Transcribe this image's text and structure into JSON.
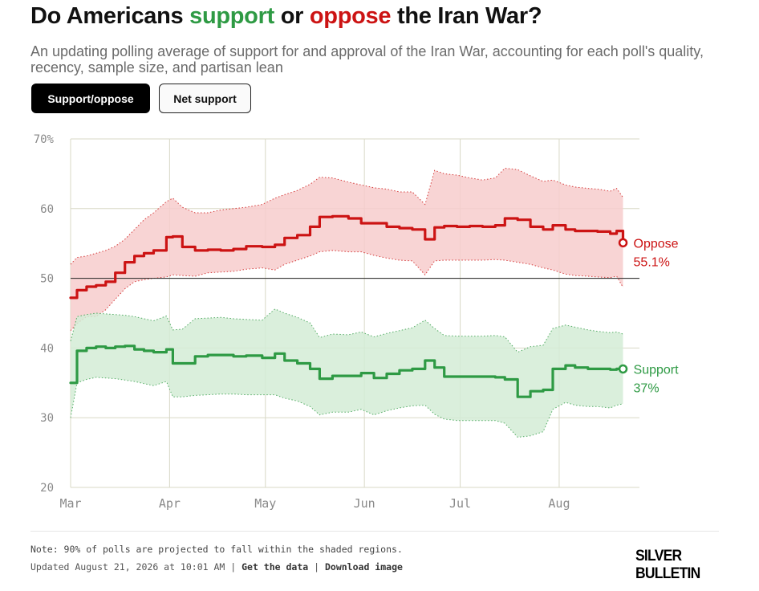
{
  "header": {
    "title_prefix": "Do Americans ",
    "title_support": "support",
    "title_mid": " or ",
    "title_oppose": "oppose",
    "title_suffix": " the Iran War?",
    "subtitle": "An updating polling average of support for and approval of the Iran War, accounting for each poll's quality, recency, sample size, and partisan lean"
  },
  "toggles": {
    "active": "Support/oppose",
    "inactive": "Net support"
  },
  "colors": {
    "support": "#2e9a44",
    "oppose": "#cc1313",
    "support_band": "#d3ecd6",
    "oppose_band": "#f7cccc",
    "grid": "#d8d8c6",
    "axis_text": "#8a8a8a"
  },
  "chart_data": {
    "type": "area",
    "x_unit": "date",
    "x_range": [
      "2026-03-01",
      "2026-08-21"
    ],
    "ylim": [
      20,
      70
    ],
    "y_ticks": [
      20,
      30,
      40,
      50,
      60,
      70
    ],
    "y_tick_labels": [
      "20",
      "30",
      "40",
      "50",
      "60",
      "70%"
    ],
    "x_ticks": [
      {
        "date": "2026-03-01",
        "label": "Mar"
      },
      {
        "date": "2026-04-01",
        "label": "Apr"
      },
      {
        "date": "2026-05-01",
        "label": "May"
      },
      {
        "date": "2026-06-01",
        "label": "Jun"
      },
      {
        "date": "2026-07-01",
        "label": "Jul"
      },
      {
        "date": "2026-08-01",
        "label": "Aug"
      }
    ],
    "reference_line": 50,
    "grid": true,
    "legend_placement": "end-of-line labels",
    "series": [
      {
        "name": "Oppose",
        "end_label": "55.1%",
        "x": [
          "2026-03-01",
          "2026-03-03",
          "2026-03-06",
          "2026-03-09",
          "2026-03-12",
          "2026-03-15",
          "2026-03-18",
          "2026-03-21",
          "2026-03-24",
          "2026-03-27",
          "2026-03-31",
          "2026-04-02",
          "2026-04-05",
          "2026-04-09",
          "2026-04-13",
          "2026-04-17",
          "2026-04-21",
          "2026-04-25",
          "2026-04-30",
          "2026-05-04",
          "2026-05-07",
          "2026-05-11",
          "2026-05-15",
          "2026-05-18",
          "2026-05-22",
          "2026-05-27",
          "2026-05-31",
          "2026-06-04",
          "2026-06-08",
          "2026-06-12",
          "2026-06-16",
          "2026-06-20",
          "2026-06-23",
          "2026-06-26",
          "2026-06-30",
          "2026-07-04",
          "2026-07-08",
          "2026-07-12",
          "2026-07-15",
          "2026-07-19",
          "2026-07-23",
          "2026-07-27",
          "2026-07-30",
          "2026-08-03",
          "2026-08-06",
          "2026-08-10",
          "2026-08-13",
          "2026-08-17",
          "2026-08-19",
          "2026-08-21"
        ],
        "values": [
          47.2,
          48.3,
          48.8,
          49.0,
          49.5,
          50.8,
          52.3,
          53.2,
          53.6,
          54.0,
          55.9,
          56.0,
          54.5,
          54.0,
          54.1,
          54.0,
          54.2,
          54.6,
          54.5,
          54.8,
          55.8,
          56.2,
          57.4,
          58.8,
          58.9,
          58.6,
          57.9,
          57.9,
          57.4,
          57.2,
          57.0,
          55.6,
          57.3,
          57.5,
          57.4,
          57.5,
          57.4,
          57.6,
          58.6,
          58.4,
          57.4,
          57.0,
          57.6,
          57.0,
          56.8,
          56.8,
          56.7,
          56.4,
          56.8,
          55.1
        ],
        "band_low": [
          42.5,
          43.5,
          44.5,
          44.5,
          45.5,
          47.0,
          48.5,
          49.5,
          49.8,
          50.0,
          50.2,
          50.5,
          50.4,
          50.3,
          50.8,
          50.9,
          51.0,
          51.3,
          51.5,
          51.2,
          52.0,
          52.6,
          53.2,
          53.8,
          54.0,
          53.8,
          53.8,
          53.3,
          52.9,
          52.6,
          52.5,
          50.5,
          52.5,
          52.6,
          52.6,
          52.6,
          52.6,
          52.7,
          52.6,
          52.3,
          52.0,
          51.5,
          51.2,
          50.6,
          50.4,
          50.3,
          50.2,
          50.1,
          50.3,
          48.7
        ],
        "band_high": [
          52.0,
          53.0,
          53.2,
          53.6,
          54.0,
          54.6,
          55.6,
          57.0,
          58.4,
          59.4,
          61.0,
          61.5,
          60.2,
          59.4,
          59.4,
          59.8,
          60.0,
          60.2,
          60.6,
          61.5,
          62.0,
          62.6,
          63.5,
          64.5,
          64.4,
          63.8,
          63.4,
          63.0,
          62.8,
          62.4,
          62.4,
          60.6,
          65.5,
          65.0,
          64.8,
          64.4,
          64.1,
          64.4,
          65.8,
          65.6,
          64.7,
          63.9,
          64.1,
          63.4,
          63.1,
          62.9,
          62.8,
          62.5,
          62.9,
          61.6
        ]
      },
      {
        "name": "Support",
        "end_label": "37%",
        "x": [
          "2026-03-01",
          "2026-03-03",
          "2026-03-06",
          "2026-03-09",
          "2026-03-12",
          "2026-03-15",
          "2026-03-18",
          "2026-03-21",
          "2026-03-24",
          "2026-03-27",
          "2026-03-31",
          "2026-04-02",
          "2026-04-05",
          "2026-04-09",
          "2026-04-13",
          "2026-04-17",
          "2026-04-21",
          "2026-04-25",
          "2026-04-30",
          "2026-05-04",
          "2026-05-07",
          "2026-05-11",
          "2026-05-15",
          "2026-05-18",
          "2026-05-22",
          "2026-05-27",
          "2026-05-31",
          "2026-06-04",
          "2026-06-08",
          "2026-06-12",
          "2026-06-16",
          "2026-06-20",
          "2026-06-23",
          "2026-06-26",
          "2026-06-30",
          "2026-07-04",
          "2026-07-08",
          "2026-07-12",
          "2026-07-15",
          "2026-07-19",
          "2026-07-23",
          "2026-07-27",
          "2026-07-30",
          "2026-08-03",
          "2026-08-06",
          "2026-08-10",
          "2026-08-13",
          "2026-08-17",
          "2026-08-19",
          "2026-08-21"
        ],
        "values": [
          35.0,
          39.6,
          40.0,
          40.2,
          40.0,
          40.2,
          40.3,
          39.8,
          39.6,
          39.4,
          39.8,
          37.8,
          37.8,
          38.8,
          39.0,
          39.0,
          38.8,
          38.9,
          38.6,
          39.2,
          38.2,
          37.8,
          37.0,
          35.6,
          36.0,
          36.0,
          36.4,
          35.7,
          36.3,
          36.8,
          37.0,
          38.2,
          37.2,
          35.9,
          35.9,
          35.9,
          35.9,
          35.8,
          35.5,
          33.0,
          33.8,
          34.0,
          37.0,
          37.5,
          37.2,
          37.0,
          37.0,
          36.9,
          37.0,
          37.0
        ],
        "band_low": [
          30.0,
          35.0,
          35.5,
          35.8,
          35.7,
          35.6,
          35.4,
          35.2,
          34.9,
          34.6,
          35.2,
          33.0,
          33.0,
          33.2,
          33.3,
          33.4,
          33.4,
          33.3,
          33.3,
          33.3,
          32.8,
          32.4,
          31.6,
          30.4,
          30.8,
          30.8,
          31.2,
          30.4,
          31.0,
          31.4,
          31.7,
          31.8,
          30.5,
          29.8,
          29.6,
          29.6,
          29.6,
          29.6,
          29.2,
          27.2,
          27.4,
          28.0,
          31.2,
          32.2,
          31.8,
          31.6,
          31.6,
          31.4,
          31.8,
          32.0
        ],
        "band_high": [
          41.0,
          44.5,
          44.8,
          45.0,
          44.9,
          44.8,
          44.7,
          44.5,
          44.2,
          43.9,
          44.6,
          42.6,
          42.7,
          44.2,
          44.3,
          44.4,
          44.2,
          44.1,
          44.0,
          45.6,
          45.0,
          44.4,
          43.6,
          41.5,
          42.0,
          41.9,
          42.3,
          41.6,
          42.1,
          42.5,
          42.9,
          44.0,
          42.8,
          41.8,
          41.7,
          41.7,
          41.7,
          41.8,
          41.6,
          39.4,
          40.2,
          40.4,
          42.8,
          43.3,
          43.0,
          42.6,
          42.4,
          42.2,
          42.3,
          42.0
        ]
      }
    ]
  },
  "footer": {
    "note": "Note: 90% of polls are projected to fall within the shaded regions.",
    "updated": "Updated August 21, 2026 at 10:01 AM",
    "sep1": " | ",
    "get_data": "Get the data",
    "sep2": " | ",
    "download": "Download image",
    "brand": "SILVER BULLETIN"
  }
}
